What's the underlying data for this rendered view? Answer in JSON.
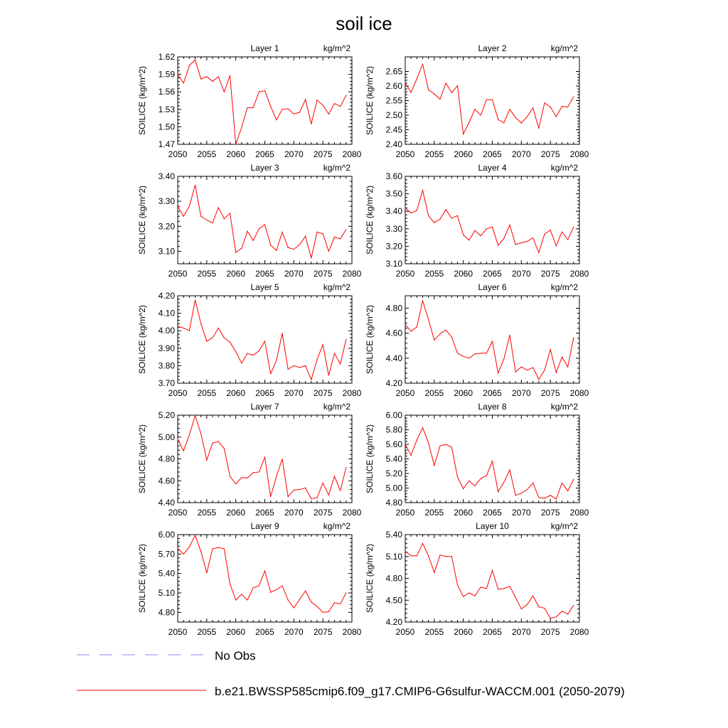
{
  "figure": {
    "title": "soil ice",
    "units": "kg/m^2",
    "ylabel": "SOILICE  (kg/m^2)",
    "xticks": [
      "2050",
      "2055",
      "2060",
      "2065",
      "2070",
      "2075",
      "2080"
    ]
  },
  "legend": {
    "obs_label": "No Obs",
    "obs_color": "#8a8aff",
    "model_label": "b.e21.BWSSP585cmip6.f09_g17.CMIP6-G6sulfur-WACCM.001 (2050-2079)",
    "model_color": "#ff0000"
  },
  "chart_data": [
    {
      "type": "line",
      "title": "Layer 1",
      "x": [
        2050,
        2051,
        2052,
        2053,
        2054,
        2055,
        2056,
        2057,
        2058,
        2059,
        2060,
        2061,
        2062,
        2063,
        2064,
        2065,
        2066,
        2067,
        2068,
        2069,
        2070,
        2071,
        2072,
        2073,
        2074,
        2075,
        2076,
        2077,
        2078,
        2079
      ],
      "values": [
        1.59,
        1.575,
        1.605,
        1.615,
        1.582,
        1.586,
        1.578,
        1.586,
        1.56,
        1.588,
        1.47,
        1.499,
        1.533,
        1.533,
        1.56,
        1.562,
        1.535,
        1.512,
        1.53,
        1.531,
        1.522,
        1.525,
        1.547,
        1.505,
        1.546,
        1.537,
        1.522,
        1.54,
        1.535,
        1.554
      ],
      "xlim": [
        2050,
        2080
      ],
      "ylim": [
        1.47,
        1.62
      ],
      "yticks": [
        "1.47",
        "1.50",
        "1.53",
        "1.56",
        "1.59",
        "1.62"
      ]
    },
    {
      "type": "line",
      "title": "Layer 2",
      "x": [
        2050,
        2051,
        2052,
        2053,
        2054,
        2055,
        2056,
        2057,
        2058,
        2059,
        2060,
        2061,
        2062,
        2063,
        2064,
        2065,
        2066,
        2067,
        2068,
        2069,
        2070,
        2071,
        2072,
        2073,
        2074,
        2075,
        2076,
        2077,
        2078,
        2079
      ],
      "values": [
        2.61,
        2.578,
        2.625,
        2.675,
        2.587,
        2.573,
        2.555,
        2.61,
        2.577,
        2.601,
        2.435,
        2.475,
        2.52,
        2.5,
        2.553,
        2.553,
        2.485,
        2.474,
        2.52,
        2.492,
        2.473,
        2.495,
        2.525,
        2.455,
        2.542,
        2.528,
        2.495,
        2.53,
        2.528,
        2.563
      ],
      "xlim": [
        2050,
        2080
      ],
      "ylim": [
        2.4,
        2.7
      ],
      "yticks": [
        "2.40",
        "2.45",
        "2.50",
        "2.55",
        "2.60",
        "2.65"
      ]
    },
    {
      "type": "line",
      "title": "Layer 3",
      "x": [
        2050,
        2051,
        2052,
        2053,
        2054,
        2055,
        2056,
        2057,
        2058,
        2059,
        2060,
        2061,
        2062,
        2063,
        2064,
        2065,
        2066,
        2067,
        2068,
        2069,
        2070,
        2071,
        2072,
        2073,
        2074,
        2075,
        2076,
        2077,
        2078,
        2079
      ],
      "values": [
        3.28,
        3.24,
        3.28,
        3.365,
        3.24,
        3.225,
        3.213,
        3.275,
        3.23,
        3.252,
        3.095,
        3.112,
        3.18,
        3.143,
        3.19,
        3.207,
        3.125,
        3.103,
        3.177,
        3.115,
        3.108,
        3.127,
        3.16,
        3.073,
        3.177,
        3.17,
        3.1,
        3.157,
        3.15,
        3.187
      ],
      "xlim": [
        2050,
        2080
      ],
      "ylim": [
        3.05,
        3.4
      ],
      "yticks": [
        "3.10",
        "3.20",
        "3.30",
        "3.40"
      ]
    },
    {
      "type": "line",
      "title": "Layer 4",
      "x": [
        2050,
        2051,
        2052,
        2053,
        2054,
        2055,
        2056,
        2057,
        2058,
        2059,
        2060,
        2061,
        2062,
        2063,
        2064,
        2065,
        2066,
        2067,
        2068,
        2069,
        2070,
        2071,
        2072,
        2073,
        2074,
        2075,
        2076,
        2077,
        2078,
        2079
      ],
      "values": [
        3.42,
        3.39,
        3.405,
        3.52,
        3.375,
        3.335,
        3.355,
        3.41,
        3.36,
        3.375,
        3.265,
        3.235,
        3.29,
        3.26,
        3.3,
        3.31,
        3.205,
        3.245,
        3.322,
        3.21,
        3.22,
        3.228,
        3.248,
        3.163,
        3.27,
        3.292,
        3.203,
        3.282,
        3.238,
        3.31
      ],
      "xlim": [
        2050,
        2080
      ],
      "ylim": [
        3.1,
        3.6
      ],
      "yticks": [
        "3.10",
        "3.20",
        "3.30",
        "3.40",
        "3.50",
        "3.60"
      ]
    },
    {
      "type": "line",
      "title": "Layer 5",
      "x": [
        2050,
        2051,
        2052,
        2053,
        2054,
        2055,
        2056,
        2057,
        2058,
        2059,
        2060,
        2061,
        2062,
        2063,
        2064,
        2065,
        2066,
        2067,
        2068,
        2069,
        2070,
        2071,
        2072,
        2073,
        2074,
        2075,
        2076,
        2077,
        2078,
        2079
      ],
      "values": [
        4.025,
        4.015,
        4.0,
        4.175,
        4.04,
        3.94,
        3.96,
        4.015,
        3.96,
        3.935,
        3.88,
        3.815,
        3.87,
        3.86,
        3.885,
        3.94,
        3.755,
        3.83,
        3.985,
        3.78,
        3.8,
        3.79,
        3.8,
        3.72,
        3.835,
        3.92,
        3.745,
        3.87,
        3.81,
        3.95
      ],
      "xlim": [
        2050,
        2080
      ],
      "ylim": [
        3.7,
        4.2
      ],
      "yticks": [
        "3.70",
        "3.80",
        "3.90",
        "4.00",
        "4.10",
        "4.20"
      ]
    },
    {
      "type": "line",
      "title": "Layer 6",
      "x": [
        2050,
        2051,
        2052,
        2053,
        2054,
        2055,
        2056,
        2057,
        2058,
        2059,
        2060,
        2061,
        2062,
        2063,
        2064,
        2065,
        2066,
        2067,
        2068,
        2069,
        2070,
        2071,
        2072,
        2073,
        2074,
        2075,
        2076,
        2077,
        2078,
        2079
      ],
      "values": [
        4.67,
        4.615,
        4.65,
        4.86,
        4.71,
        4.545,
        4.595,
        4.625,
        4.57,
        4.44,
        4.415,
        4.4,
        4.435,
        4.44,
        4.44,
        4.535,
        4.28,
        4.395,
        4.585,
        4.29,
        4.33,
        4.305,
        4.325,
        4.23,
        4.305,
        4.47,
        4.285,
        4.41,
        4.33,
        4.565
      ],
      "xlim": [
        2050,
        2080
      ],
      "ylim": [
        4.2,
        4.9
      ],
      "yticks": [
        "4.20",
        "4.40",
        "4.60",
        "4.80"
      ]
    },
    {
      "type": "line",
      "title": "Layer 7",
      "x": [
        2050,
        2051,
        2052,
        2053,
        2054,
        2055,
        2056,
        2057,
        2058,
        2059,
        2060,
        2061,
        2062,
        2063,
        2064,
        2065,
        2066,
        2067,
        2068,
        2069,
        2070,
        2071,
        2072,
        2073,
        2074,
        2075,
        2076,
        2077,
        2078,
        2079
      ],
      "values": [
        4.98,
        4.875,
        5.02,
        5.195,
        5.03,
        4.79,
        4.945,
        4.96,
        4.895,
        4.64,
        4.57,
        4.63,
        4.625,
        4.675,
        4.68,
        4.815,
        4.455,
        4.64,
        4.8,
        4.455,
        4.515,
        4.52,
        4.535,
        4.435,
        4.445,
        4.58,
        4.47,
        4.64,
        4.51,
        4.72
      ],
      "xlim": [
        2050,
        2080
      ],
      "ylim": [
        4.4,
        5.2
      ],
      "yticks": [
        "4.40",
        "4.60",
        "4.80",
        "5.00",
        "5.20"
      ]
    },
    {
      "type": "line",
      "title": "Layer 8",
      "x": [
        2050,
        2051,
        2052,
        2053,
        2054,
        2055,
        2056,
        2057,
        2058,
        2059,
        2060,
        2061,
        2062,
        2063,
        2064,
        2065,
        2066,
        2067,
        2068,
        2069,
        2070,
        2071,
        2072,
        2073,
        2074,
        2075,
        2076,
        2077,
        2078,
        2079
      ],
      "values": [
        5.6,
        5.45,
        5.66,
        5.83,
        5.62,
        5.31,
        5.58,
        5.6,
        5.56,
        5.15,
        4.99,
        5.1,
        5.03,
        5.13,
        5.17,
        5.37,
        4.95,
        5.08,
        5.25,
        4.9,
        4.93,
        4.98,
        5.07,
        4.87,
        4.86,
        4.9,
        4.85,
        5.07,
        4.96,
        5.12
      ],
      "xlim": [
        2050,
        2080
      ],
      "ylim": [
        4.8,
        6.0
      ],
      "yticks": [
        "4.80",
        "5.00",
        "5.20",
        "5.40",
        "5.60",
        "5.80",
        "6.00"
      ]
    },
    {
      "type": "line",
      "title": "Layer 9",
      "x": [
        2050,
        2051,
        2052,
        2053,
        2054,
        2055,
        2056,
        2057,
        2058,
        2059,
        2060,
        2061,
        2062,
        2063,
        2064,
        2065,
        2066,
        2067,
        2068,
        2069,
        2070,
        2071,
        2072,
        2073,
        2074,
        2075,
        2076,
        2077,
        2078,
        2079
      ],
      "values": [
        5.79,
        5.7,
        5.81,
        5.99,
        5.74,
        5.41,
        5.78,
        5.8,
        5.78,
        5.24,
        4.99,
        5.08,
        4.99,
        5.18,
        5.21,
        5.44,
        5.11,
        5.15,
        5.21,
        4.99,
        4.87,
        5.0,
        5.13,
        4.96,
        4.89,
        4.8,
        4.81,
        4.95,
        4.93,
        5.1
      ],
      "xlim": [
        2050,
        2080
      ],
      "ylim": [
        4.65,
        6.0
      ],
      "yticks": [
        "4.80",
        "5.10",
        "5.40",
        "5.70",
        "6.00"
      ]
    },
    {
      "type": "line",
      "title": "Layer 10",
      "x": [
        2050,
        2051,
        2052,
        2053,
        2054,
        2055,
        2056,
        2057,
        2058,
        2059,
        2060,
        2061,
        2062,
        2063,
        2064,
        2065,
        2066,
        2067,
        2068,
        2069,
        2070,
        2071,
        2072,
        2073,
        2074,
        2075,
        2076,
        2077,
        2078,
        2079
      ],
      "values": [
        5.17,
        5.11,
        5.11,
        5.28,
        5.11,
        4.88,
        5.12,
        5.1,
        5.1,
        4.71,
        4.55,
        4.6,
        4.56,
        4.68,
        4.66,
        4.91,
        4.65,
        4.66,
        4.69,
        4.54,
        4.38,
        4.44,
        4.56,
        4.41,
        4.39,
        4.25,
        4.27,
        4.35,
        4.31,
        4.43
      ],
      "xlim": [
        2050,
        2080
      ],
      "ylim": [
        4.2,
        5.4
      ],
      "yticks": [
        "4.20",
        "4.50",
        "4.80",
        "5.10",
        "5.40"
      ]
    }
  ]
}
